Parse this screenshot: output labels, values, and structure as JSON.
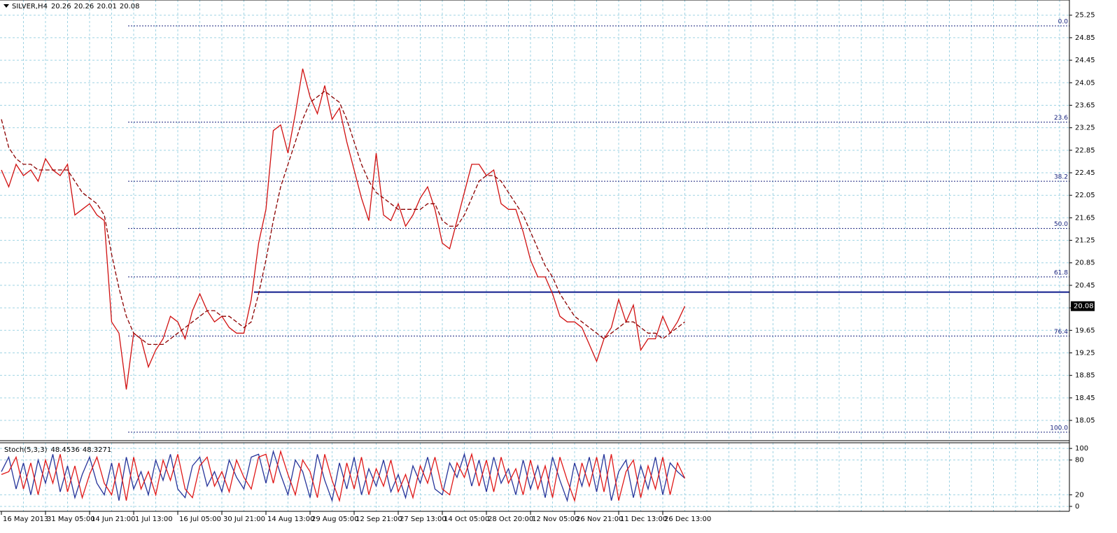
{
  "chart_data": [
    {
      "type": "line",
      "title": "SILVER,H4",
      "header_values": [
        20.26,
        20.26,
        20.01,
        20.08
      ],
      "last_price": 20.08,
      "categories": [
        "16 May 2013",
        null,
        null,
        null,
        null,
        null,
        "31 May 05:00",
        null,
        null,
        null,
        null,
        null,
        "14 Jun 21:00",
        null,
        null,
        null,
        null,
        null,
        "1 Jul 13:00",
        null,
        null,
        null,
        null,
        null,
        "16 Jul 05:00",
        null,
        null,
        null,
        null,
        null,
        "30 Jul 21:00",
        null,
        null,
        null,
        null,
        null,
        "14 Aug 13:00",
        null,
        null,
        null,
        null,
        null,
        "29 Aug 05:00",
        null,
        null,
        null,
        null,
        null,
        "12 Sep 21:00",
        null,
        null,
        null,
        null,
        null,
        "27 Sep 13:00",
        null,
        null,
        null,
        null,
        null,
        "14 Oct 05:00",
        null,
        null,
        null,
        null,
        null,
        "28 Oct 20:00",
        null,
        null,
        null,
        null,
        null,
        "12 Nov 05:00",
        null,
        null,
        null,
        null,
        null,
        "26 Nov 21:00",
        null,
        null,
        null,
        null,
        null,
        "11 Dec 13:00",
        null,
        null,
        null,
        null,
        null,
        "26 Dec 13:00",
        null,
        null,
        null
      ],
      "series": [
        {
          "color": "#d01010",
          "values": [
            22.5,
            22.2,
            22.6,
            22.4,
            22.5,
            22.3,
            22.7,
            22.5,
            22.4,
            22.6,
            21.7,
            21.8,
            21.9,
            21.7,
            21.6,
            19.8,
            19.6,
            18.6,
            19.6,
            19.5,
            19.0,
            19.3,
            19.5,
            19.9,
            19.8,
            19.5,
            20.0,
            20.3,
            20.0,
            19.8,
            19.9,
            19.7,
            19.6,
            19.6,
            20.2,
            21.2,
            21.8,
            23.2,
            23.3,
            22.8,
            23.5,
            24.3,
            23.8,
            23.5,
            24.0,
            23.4,
            23.6,
            23.0,
            22.5,
            22.0,
            21.6,
            22.8,
            21.7,
            21.6,
            21.9,
            21.5,
            21.7,
            22.0,
            22.2,
            21.8,
            21.2,
            21.1,
            21.6,
            22.1,
            22.6,
            22.6,
            22.4,
            22.5,
            21.9,
            21.8,
            21.8,
            21.4,
            20.9,
            20.6,
            20.6,
            20.3,
            19.9,
            19.8,
            19.8,
            19.7,
            19.4,
            19.1,
            19.5,
            19.7,
            20.2,
            19.8,
            20.1,
            19.3,
            19.5,
            19.5,
            19.9,
            19.6,
            19.8,
            20.08
          ]
        },
        {
          "color": "#8b0000",
          "values": [
            23.4,
            22.9,
            22.7,
            22.6,
            22.6,
            22.5,
            22.5,
            22.5,
            22.5,
            22.5,
            22.3,
            22.1,
            22.0,
            21.9,
            21.7,
            21.0,
            20.4,
            19.9,
            19.6,
            19.5,
            19.4,
            19.4,
            19.4,
            19.5,
            19.6,
            19.7,
            19.8,
            19.9,
            20.0,
            20.0,
            19.9,
            19.9,
            19.8,
            19.7,
            19.8,
            20.3,
            20.9,
            21.6,
            22.2,
            22.6,
            23.0,
            23.4,
            23.7,
            23.8,
            23.9,
            23.8,
            23.7,
            23.4,
            23.0,
            22.6,
            22.3,
            22.1,
            22.0,
            21.9,
            21.8,
            21.8,
            21.8,
            21.8,
            21.9,
            21.9,
            21.6,
            21.5,
            21.5,
            21.7,
            22.0,
            22.3,
            22.4,
            22.4,
            22.3,
            22.1,
            21.9,
            21.7,
            21.4,
            21.1,
            20.8,
            20.6,
            20.3,
            20.1,
            19.9,
            19.8,
            19.7,
            19.6,
            19.5,
            19.6,
            19.7,
            19.8,
            19.8,
            19.7,
            19.6,
            19.6,
            19.5,
            19.6,
            19.7,
            19.8
          ]
        }
      ],
      "fib_levels": [
        {
          "value": 25.06,
          "label": "0.0"
        },
        {
          "value": 23.35,
          "label": "23.6"
        },
        {
          "value": 22.3,
          "label": "38.2"
        },
        {
          "value": 21.46,
          "label": "50.0"
        },
        {
          "value": 20.6,
          "label": "61.8"
        },
        {
          "value": 19.55,
          "label": "76.4"
        },
        {
          "value": 17.84,
          "label": "100.0"
        }
      ],
      "fib_color": "#1a237e",
      "level_line": 20.33,
      "level_color": "#0d1a8c",
      "ylim": [
        17.69,
        25.52
      ],
      "yticks": [
        18.05,
        18.45,
        18.85,
        19.25,
        19.65,
        20.05,
        20.45,
        20.85,
        21.25,
        21.65,
        22.05,
        22.45,
        22.85,
        23.25,
        23.65,
        24.05,
        24.45,
        24.85,
        25.25
      ],
      "grid": true
    },
    {
      "type": "line",
      "title": "Stoch(5,3,3)",
      "header_values": [
        48.4536,
        48.3271
      ],
      "series": [
        {
          "color": "#26349a",
          "values": [
            60,
            85,
            30,
            75,
            20,
            80,
            40,
            90,
            25,
            70,
            15,
            55,
            85,
            40,
            20,
            75,
            10,
            85,
            30,
            60,
            20,
            80,
            45,
            90,
            30,
            15,
            70,
            85,
            35,
            60,
            25,
            80,
            50,
            30,
            85,
            90,
            40,
            95,
            55,
            20,
            80,
            60,
            15,
            90,
            45,
            10,
            75,
            30,
            85,
            20,
            65,
            35,
            80,
            25,
            55,
            15,
            70,
            40,
            85,
            30,
            20,
            75,
            50,
            90,
            35,
            80,
            25,
            85,
            40,
            65,
            20,
            80,
            30,
            70,
            15,
            85,
            45,
            10,
            75,
            35,
            85,
            25,
            90,
            10,
            60,
            80,
            15,
            70,
            30,
            85,
            20,
            75,
            60,
            48.4536
          ]
        },
        {
          "color": "#e01818",
          "values": [
            55,
            60,
            85,
            30,
            75,
            20,
            80,
            40,
            90,
            25,
            70,
            15,
            55,
            85,
            40,
            20,
            75,
            10,
            85,
            30,
            60,
            20,
            80,
            45,
            90,
            30,
            15,
            70,
            85,
            35,
            60,
            25,
            80,
            50,
            30,
            85,
            90,
            40,
            95,
            55,
            20,
            80,
            60,
            15,
            90,
            45,
            10,
            75,
            30,
            85,
            20,
            65,
            35,
            80,
            25,
            55,
            15,
            70,
            40,
            85,
            30,
            20,
            75,
            50,
            90,
            35,
            80,
            25,
            85,
            40,
            65,
            20,
            80,
            30,
            70,
            15,
            85,
            45,
            10,
            75,
            35,
            85,
            25,
            90,
            10,
            60,
            80,
            15,
            70,
            30,
            85,
            20,
            75,
            48.3271
          ]
        }
      ],
      "ylim": [
        -8.5,
        109.8
      ],
      "yticks": [
        0,
        20,
        80,
        100
      ],
      "grid": true
    }
  ]
}
